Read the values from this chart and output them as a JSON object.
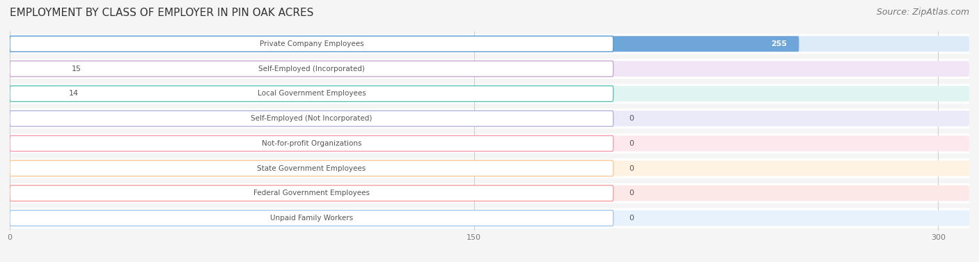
{
  "title": "EMPLOYMENT BY CLASS OF EMPLOYER IN PIN OAK ACRES",
  "source": "Source: ZipAtlas.com",
  "categories": [
    "Private Company Employees",
    "Self-Employed (Incorporated)",
    "Local Government Employees",
    "Self-Employed (Not Incorporated)",
    "Not-for-profit Organizations",
    "State Government Employees",
    "Federal Government Employees",
    "Unpaid Family Workers"
  ],
  "values": [
    255,
    15,
    14,
    0,
    0,
    0,
    0,
    0
  ],
  "bar_colors": [
    "#5b9bd5",
    "#c9a8d4",
    "#5ec4b6",
    "#b3b3e0",
    "#f4a0b0",
    "#f9c99a",
    "#f4a0a0",
    "#a8c8f0"
  ],
  "bar_bg_colors": [
    "#ddeaf8",
    "#f0e6f6",
    "#e0f5f2",
    "#eaeaf8",
    "#fde8ed",
    "#fef3e2",
    "#fde8e8",
    "#e8f2fc"
  ],
  "xlim": [
    0,
    310
  ],
  "xticks": [
    0,
    150,
    300
  ],
  "background_color": "#f5f5f5",
  "title_fontsize": 11,
  "source_fontsize": 9
}
